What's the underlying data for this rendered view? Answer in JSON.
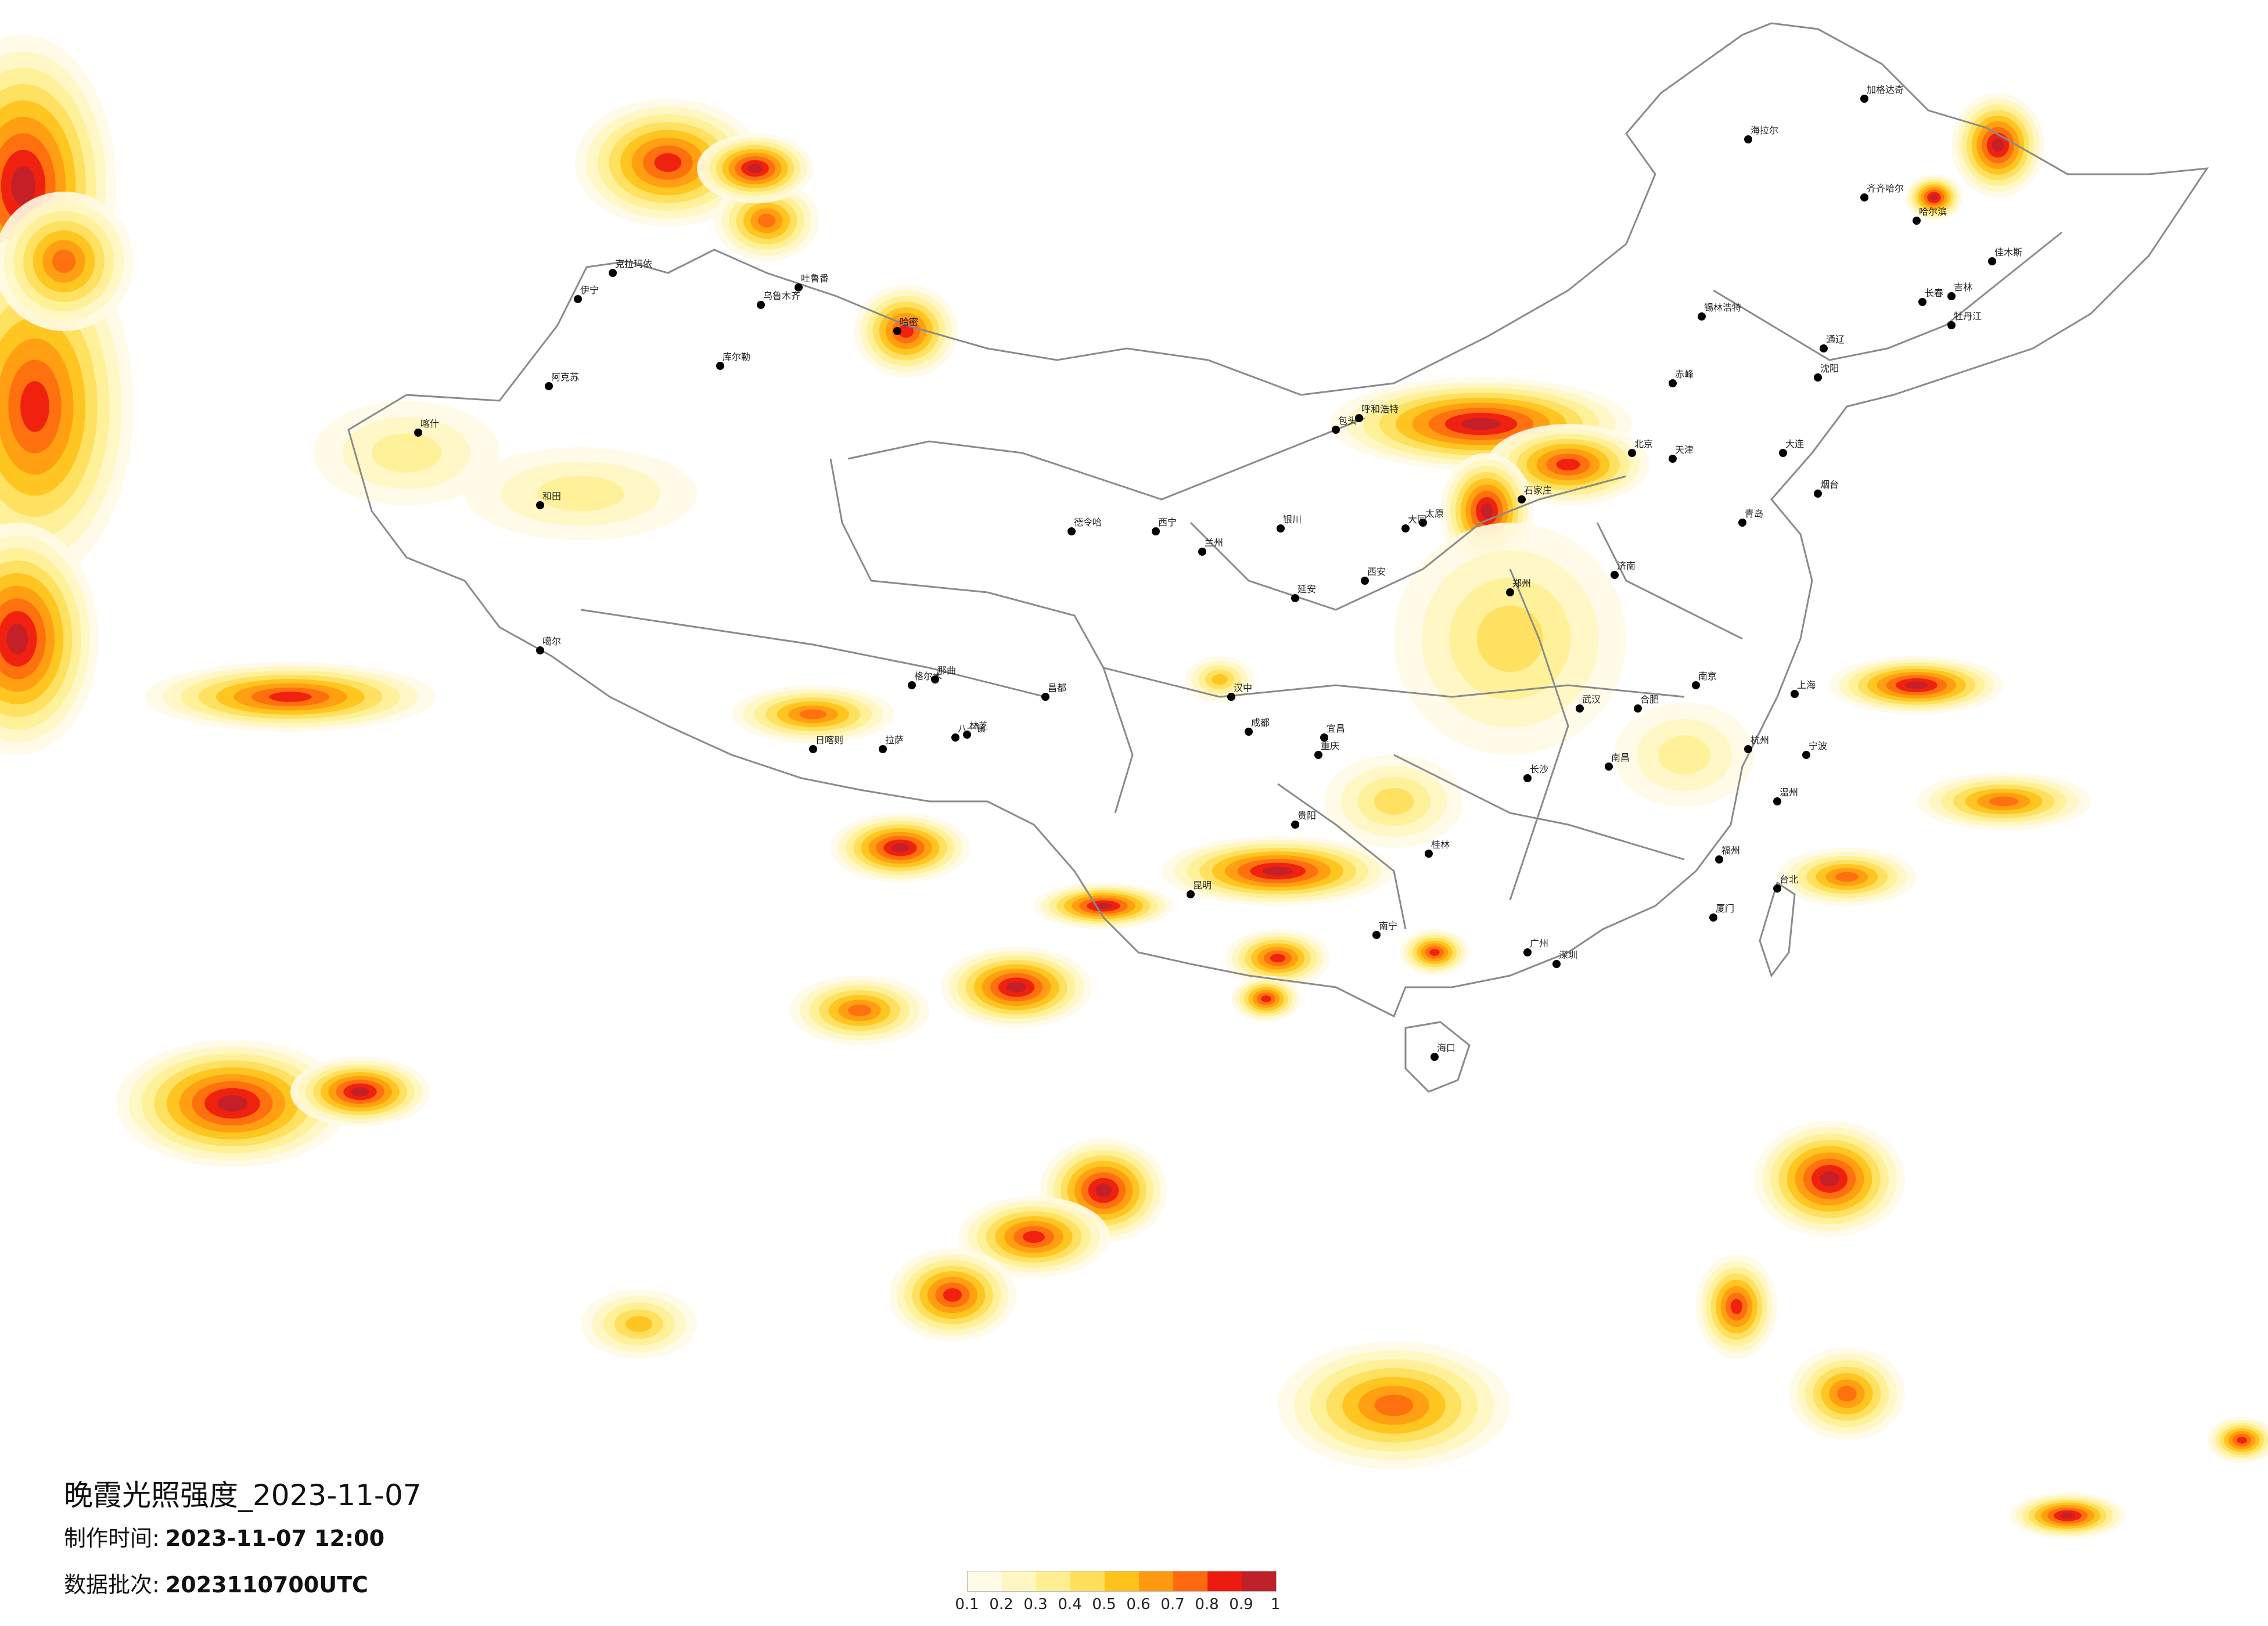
{
  "title": "晚霞光照强度_2023-11-07",
  "made_time_label": "制作时间:",
  "made_time_value": "2023-11-07 12:00",
  "batch_label": "数据批次:",
  "batch_value": "2023110700UTC",
  "legend": {
    "ticks": [
      "0.1",
      "0.2",
      "0.3",
      "0.4",
      "0.5",
      "0.6",
      "0.7",
      "0.8",
      "0.9",
      "1"
    ],
    "colors": [
      "#fffbe6",
      "#fff6c2",
      "#ffef93",
      "#ffdf5c",
      "#ffc21a",
      "#ff9a10",
      "#ff6a10",
      "#ee1a10",
      "#c0202a"
    ]
  },
  "cities": [
    {
      "name": "伊宁"
    },
    {
      "name": "克拉玛依"
    },
    {
      "name": "乌鲁木齐"
    },
    {
      "name": "吐鲁番"
    },
    {
      "name": "哈密"
    },
    {
      "name": "库尔勒"
    },
    {
      "name": "阿克苏"
    },
    {
      "name": "喀什"
    },
    {
      "name": "和田"
    },
    {
      "name": "德令哈"
    },
    {
      "name": "格尔木"
    },
    {
      "name": "噶尔"
    },
    {
      "name": "日喀则"
    },
    {
      "name": "拉萨"
    },
    {
      "name": "林芝"
    },
    {
      "name": "八一镇"
    },
    {
      "name": "昌都"
    },
    {
      "name": "那曲"
    },
    {
      "name": "西宁"
    },
    {
      "name": "兰州"
    },
    {
      "name": "银川"
    },
    {
      "name": "呼和浩特"
    },
    {
      "name": "包头"
    },
    {
      "name": "太原"
    },
    {
      "name": "西安"
    },
    {
      "name": "成都"
    },
    {
      "name": "重庆"
    },
    {
      "name": "贵阳"
    },
    {
      "name": "昆明"
    },
    {
      "name": "南宁"
    },
    {
      "name": "海口"
    },
    {
      "name": "广州"
    },
    {
      "name": "深圳"
    },
    {
      "name": "福州"
    },
    {
      "name": "台北"
    },
    {
      "name": "杭州"
    },
    {
      "name": "上海"
    },
    {
      "name": "南京"
    },
    {
      "name": "合肥"
    },
    {
      "name": "武汉"
    },
    {
      "name": "长沙"
    },
    {
      "name": "南昌"
    },
    {
      "name": "郑州"
    },
    {
      "name": "济南"
    },
    {
      "name": "石家庄"
    },
    {
      "name": "北京"
    },
    {
      "name": "天津"
    },
    {
      "name": "沈阳"
    },
    {
      "name": "大连"
    },
    {
      "name": "长春"
    },
    {
      "name": "吉林"
    },
    {
      "name": "哈尔滨"
    },
    {
      "name": "齐齐哈尔"
    },
    {
      "name": "海拉尔"
    },
    {
      "name": "加格达奇"
    },
    {
      "name": "佳木斯"
    },
    {
      "name": "牡丹江"
    },
    {
      "name": "锡林浩特"
    },
    {
      "name": "赤峰"
    },
    {
      "name": "通辽"
    },
    {
      "name": "青岛"
    },
    {
      "name": "烟台"
    },
    {
      "name": "大同"
    },
    {
      "name": "延安"
    },
    {
      "name": "汉中"
    },
    {
      "name": "宜昌"
    },
    {
      "name": "桂林"
    },
    {
      "name": "厦门"
    },
    {
      "name": "温州"
    },
    {
      "name": "宁波"
    }
  ]
}
